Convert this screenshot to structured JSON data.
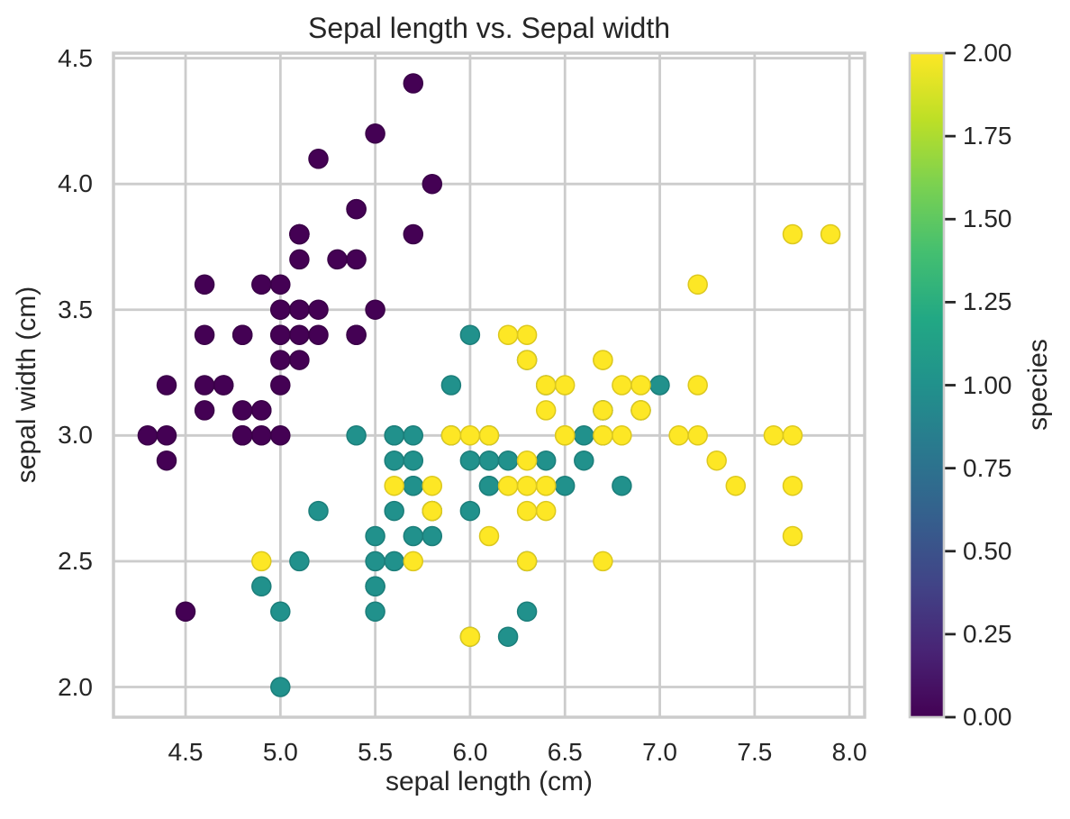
{
  "figure": {
    "background": "#ffffff",
    "text_color": "#262626",
    "grid_color": "#cccccc",
    "spine_color": "#cccccc"
  },
  "chart_data": {
    "type": "scatter",
    "title": "Sepal length vs. Sepal width",
    "xlabel": "sepal length (cm)",
    "ylabel": "sepal width (cm)",
    "xlim": [
      4.12,
      8.08
    ],
    "ylim": [
      1.88,
      4.52
    ],
    "grid": true,
    "xticks": [
      4.5,
      5.0,
      5.5,
      6.0,
      6.5,
      7.0,
      7.5,
      8.0
    ],
    "xtick_labels": [
      "4.5",
      "5.0",
      "5.5",
      "6.0",
      "6.5",
      "7.0",
      "7.5",
      "8.0"
    ],
    "yticks": [
      2.0,
      2.5,
      3.0,
      3.5,
      4.0,
      4.5
    ],
    "ytick_labels": [
      "2.0",
      "2.5",
      "3.0",
      "3.5",
      "4.0",
      "4.5"
    ],
    "marker_radius_px": 10.5,
    "series": [
      {
        "name": "species-0",
        "species_value": 0,
        "color": "#440154",
        "edge_color": "#3a0148",
        "x": [
          5.1,
          4.9,
          4.7,
          4.6,
          5.0,
          5.4,
          4.6,
          5.0,
          4.4,
          4.9,
          5.4,
          4.8,
          4.8,
          4.3,
          5.8,
          5.7,
          5.4,
          5.1,
          5.7,
          5.1,
          5.4,
          5.1,
          4.6,
          5.1,
          4.8,
          5.0,
          5.0,
          5.2,
          5.2,
          4.7,
          4.8,
          5.4,
          5.2,
          5.5,
          4.9,
          5.0,
          5.5,
          4.9,
          4.4,
          5.1,
          5.0,
          4.5,
          4.4,
          5.0,
          5.1,
          4.8,
          5.1,
          4.6,
          5.3,
          5.0
        ],
        "y": [
          3.5,
          3.0,
          3.2,
          3.1,
          3.6,
          3.9,
          3.4,
          3.4,
          2.9,
          3.1,
          3.7,
          3.4,
          3.0,
          3.0,
          4.0,
          4.4,
          3.9,
          3.5,
          3.8,
          3.8,
          3.4,
          3.7,
          3.6,
          3.3,
          3.4,
          3.0,
          3.4,
          3.5,
          3.4,
          3.2,
          3.1,
          3.4,
          4.1,
          4.2,
          3.1,
          3.2,
          3.5,
          3.6,
          3.0,
          3.4,
          3.5,
          2.3,
          3.2,
          3.5,
          3.8,
          3.0,
          3.8,
          3.2,
          3.7,
          3.3
        ]
      },
      {
        "name": "species-1",
        "species_value": 1,
        "color": "#21918c",
        "edge_color": "#1c7e7a",
        "x": [
          7.0,
          6.4,
          6.9,
          5.5,
          6.5,
          5.7,
          6.3,
          4.9,
          6.6,
          5.2,
          5.0,
          5.9,
          6.0,
          6.1,
          5.6,
          6.7,
          5.6,
          5.8,
          6.2,
          5.6,
          5.9,
          6.1,
          6.3,
          6.1,
          6.4,
          6.6,
          6.8,
          6.7,
          6.0,
          5.7,
          5.5,
          5.5,
          5.8,
          6.0,
          5.4,
          6.0,
          6.7,
          6.3,
          5.6,
          5.5,
          5.5,
          6.1,
          5.8,
          5.0,
          5.6,
          5.7,
          5.7,
          6.2,
          5.1,
          5.7
        ],
        "y": [
          3.2,
          3.2,
          3.1,
          2.3,
          2.8,
          2.8,
          3.3,
          2.4,
          2.9,
          2.7,
          2.0,
          3.0,
          2.2,
          2.9,
          2.9,
          3.1,
          3.0,
          2.7,
          2.2,
          2.5,
          3.2,
          2.8,
          2.5,
          2.8,
          2.9,
          3.0,
          2.8,
          3.0,
          2.9,
          2.6,
          2.4,
          2.4,
          2.7,
          2.7,
          3.0,
          3.4,
          3.1,
          2.3,
          3.0,
          2.5,
          2.6,
          3.0,
          2.6,
          2.3,
          2.7,
          3.0,
          2.9,
          2.9,
          2.5,
          2.8
        ]
      },
      {
        "name": "species-2",
        "species_value": 2,
        "color": "#fde725",
        "edge_color": "#dcc81f",
        "x": [
          6.3,
          5.8,
          7.1,
          6.3,
          6.5,
          7.6,
          4.9,
          7.3,
          6.7,
          7.2,
          6.5,
          6.4,
          6.8,
          5.7,
          5.8,
          6.4,
          6.5,
          7.7,
          7.7,
          6.0,
          6.9,
          5.6,
          7.7,
          6.3,
          6.7,
          7.2,
          6.2,
          6.1,
          6.4,
          7.2,
          7.4,
          7.9,
          6.4,
          6.3,
          6.1,
          7.7,
          6.3,
          6.4,
          6.0,
          6.9,
          6.7,
          6.9,
          5.8,
          6.8,
          6.7,
          6.7,
          6.3,
          6.5,
          6.2,
          5.9
        ],
        "y": [
          3.3,
          2.7,
          3.0,
          2.9,
          3.0,
          3.0,
          2.5,
          2.9,
          2.5,
          3.6,
          3.2,
          2.7,
          3.0,
          2.5,
          2.8,
          3.2,
          3.0,
          3.8,
          2.6,
          2.2,
          3.2,
          2.8,
          2.8,
          2.7,
          3.3,
          3.2,
          2.8,
          3.0,
          2.8,
          3.0,
          2.8,
          3.8,
          2.8,
          2.8,
          2.6,
          3.0,
          3.4,
          3.1,
          3.0,
          3.1,
          3.1,
          3.1,
          2.7,
          3.2,
          3.3,
          3.0,
          2.5,
          3.0,
          3.4,
          3.0
        ]
      }
    ],
    "colorbar": {
      "label": "species",
      "vmin": 0,
      "vmax": 2,
      "tick_values": [
        0.0,
        0.25,
        0.5,
        0.75,
        1.0,
        1.25,
        1.5,
        1.75,
        2.0
      ],
      "tick_labels": [
        "0.00",
        "0.25",
        "0.50",
        "0.75",
        "1.00",
        "1.25",
        "1.50",
        "1.75",
        "2.00"
      ],
      "colormap": "viridis",
      "gradient_stops": [
        "#440154",
        "#482475",
        "#414487",
        "#355f8d",
        "#2a788e",
        "#21918c",
        "#22a884",
        "#44bf70",
        "#7ad151",
        "#bddf26",
        "#fde725"
      ]
    }
  }
}
